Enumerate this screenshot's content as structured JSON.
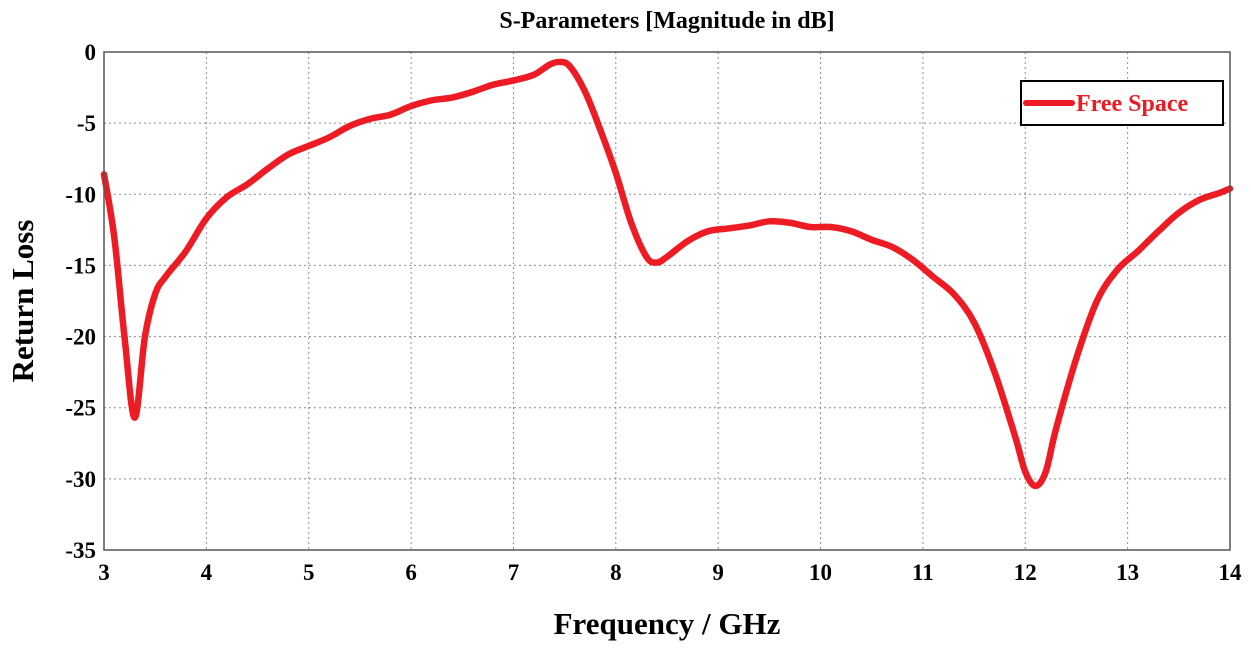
{
  "chart_data": {
    "type": "line",
    "title": "S-Parameters [Magnitude in dB]",
    "xlabel": "Frequency / GHz",
    "ylabel": "Return Loss",
    "xlim": [
      3,
      14
    ],
    "ylim": [
      -35,
      0
    ],
    "xticks": [
      3,
      4,
      5,
      6,
      7,
      8,
      9,
      10,
      11,
      12,
      13,
      14
    ],
    "yticks": [
      0,
      -5,
      -10,
      -15,
      -20,
      -25,
      -30,
      -35
    ],
    "grid": true,
    "legend_position": "top-right",
    "series": [
      {
        "name": "Free Space",
        "color": "#ed1c24",
        "x": [
          3.0,
          3.1,
          3.2,
          3.3,
          3.4,
          3.5,
          3.6,
          3.8,
          4.0,
          4.2,
          4.4,
          4.6,
          4.8,
          5.0,
          5.2,
          5.4,
          5.6,
          5.8,
          6.0,
          6.2,
          6.4,
          6.6,
          6.8,
          7.0,
          7.2,
          7.35,
          7.45,
          7.55,
          7.7,
          7.85,
          8.0,
          8.15,
          8.3,
          8.4,
          8.5,
          8.7,
          8.9,
          9.1,
          9.3,
          9.5,
          9.7,
          9.9,
          10.1,
          10.3,
          10.5,
          10.7,
          10.9,
          11.1,
          11.3,
          11.5,
          11.7,
          11.9,
          12.0,
          12.1,
          12.2,
          12.3,
          12.5,
          12.7,
          12.9,
          13.1,
          13.3,
          13.5,
          13.7,
          13.9,
          14.0
        ],
        "y": [
          -8.6,
          -13.0,
          -20.0,
          -25.7,
          -20.0,
          -17.0,
          -15.8,
          -14.0,
          -11.7,
          -10.2,
          -9.3,
          -8.2,
          -7.2,
          -6.6,
          -6.0,
          -5.2,
          -4.7,
          -4.4,
          -3.8,
          -3.4,
          -3.2,
          -2.8,
          -2.3,
          -2.0,
          -1.6,
          -0.9,
          -0.7,
          -1.0,
          -2.8,
          -5.5,
          -8.5,
          -12.0,
          -14.4,
          -14.8,
          -14.4,
          -13.3,
          -12.6,
          -12.4,
          -12.2,
          -11.9,
          -12.0,
          -12.3,
          -12.3,
          -12.6,
          -13.2,
          -13.7,
          -14.6,
          -15.8,
          -17.0,
          -19.0,
          -22.5,
          -27.0,
          -29.5,
          -30.5,
          -29.5,
          -26.5,
          -21.5,
          -17.5,
          -15.3,
          -14.0,
          -12.6,
          -11.3,
          -10.4,
          -9.9,
          -9.6
        ]
      }
    ]
  }
}
